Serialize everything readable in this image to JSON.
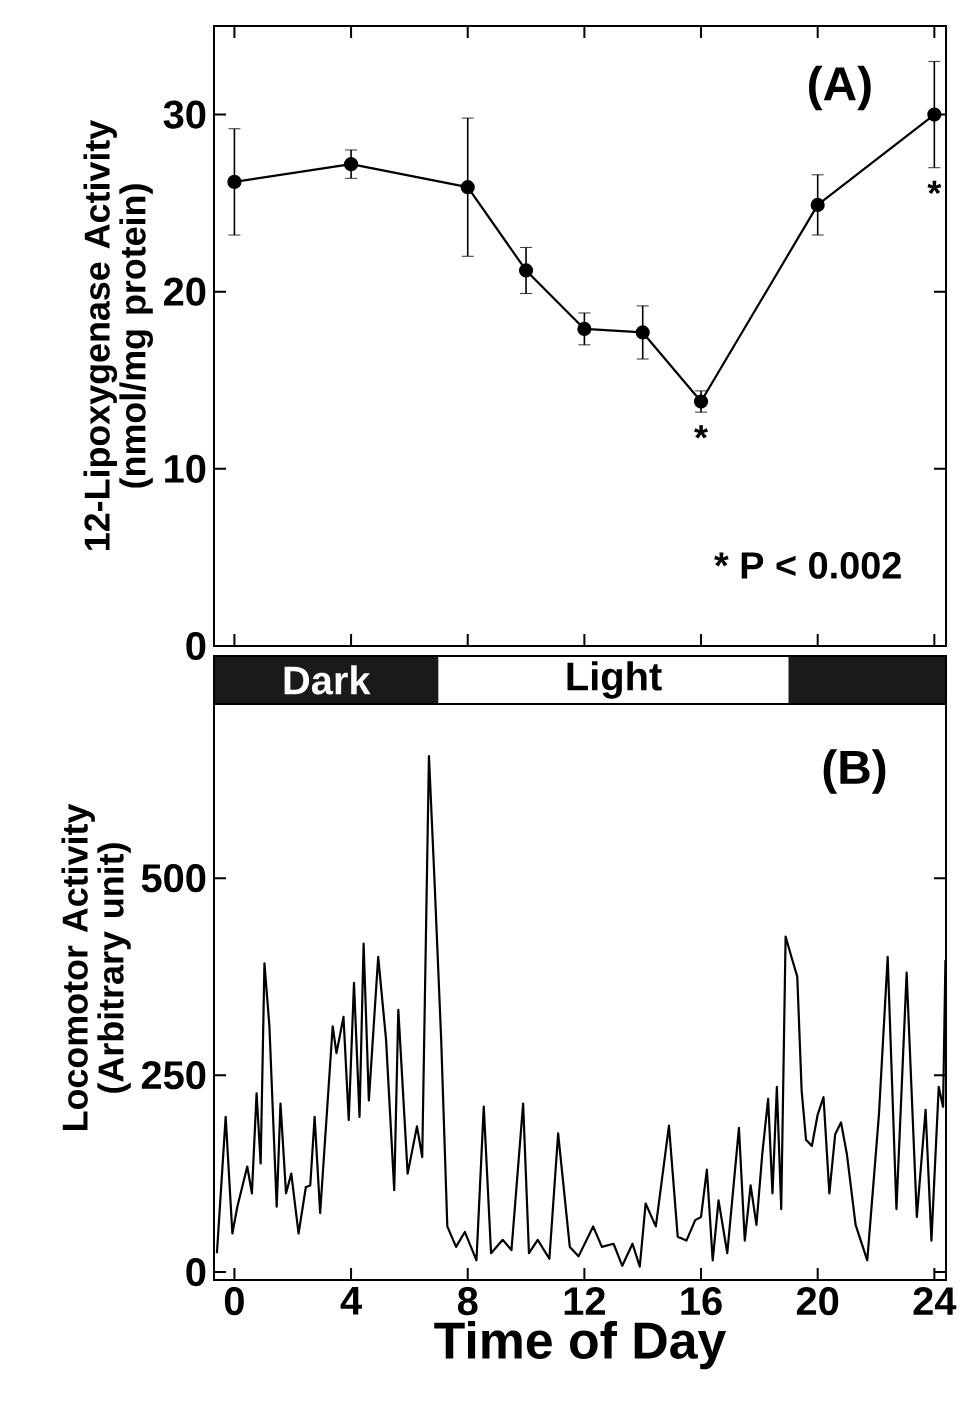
{
  "chart_data": [
    {
      "type": "line",
      "title": "(A)",
      "ylabel": "12-Lipoxygenase Activity (nmol/mg protein)",
      "xlim": [
        -0.7,
        24.4
      ],
      "xticks": [
        0,
        4,
        8,
        12,
        16,
        20,
        24
      ],
      "ylim": [
        0,
        35
      ],
      "yticks": [
        0,
        10,
        20,
        30
      ],
      "tick_labels": "y",
      "marker": "circle",
      "series": [
        {
          "color": "#000000",
          "x": [
            0,
            4,
            8,
            10,
            12,
            14,
            16,
            20,
            24
          ],
          "values": [
            26.2,
            27.2,
            25.9,
            21.2,
            17.9,
            17.7,
            13.8,
            24.9,
            30.0
          ],
          "errors": [
            3,
            0.8,
            3.9,
            1.3,
            0.9,
            1.5,
            0.6,
            1.7,
            3
          ]
        }
      ],
      "annotations": [
        {
          "text": "*",
          "x": 16,
          "y": 13.8
        },
        {
          "text": "*",
          "x": 24,
          "y": 30.0
        },
        "* P < 0.002"
      ]
    },
    {
      "type": "line",
      "title": "(B)",
      "xlabel": "Time of Day",
      "ylabel": "Locomotor Activity (Arbitrary unit)",
      "xlim": [
        -0.7,
        24.4
      ],
      "xticks": [
        0,
        4,
        8,
        12,
        16,
        20,
        24
      ],
      "ylim": [
        -10,
        782
      ],
      "yticks": [
        0,
        250,
        500
      ],
      "bands": [
        {
          "axis": "x",
          "from": -0.7,
          "to": 7,
          "label": "Dark",
          "color": "#1a1a1a"
        },
        {
          "axis": "x",
          "from": 7,
          "to": 19,
          "label": "Light",
          "color": "#ffffff"
        },
        {
          "axis": "x",
          "from": 19,
          "to": 24.4,
          "color": "#1a1a1a"
        }
      ],
      "series": [
        {
          "color": "#000000",
          "x": [
            -0.6,
            -0.3,
            -0.07,
            0.1,
            0.44,
            0.6,
            0.76,
            0.9,
            1.03,
            1.2,
            1.45,
            1.58,
            1.77,
            1.95,
            2.2,
            2.45,
            2.6,
            2.75,
            2.94,
            3.37,
            3.5,
            3.74,
            3.92,
            4.1,
            4.29,
            4.43,
            4.61,
            4.93,
            5.2,
            5.48,
            5.62,
            5.94,
            6.26,
            6.44,
            6.67,
            6.86,
            7.09,
            7.3,
            7.6,
            7.9,
            8.3,
            8.55,
            8.8,
            9.2,
            9.5,
            9.9,
            10.1,
            10.4,
            10.8,
            11.1,
            11.5,
            11.8,
            12.3,
            12.6,
            13.0,
            13.3,
            13.65,
            13.9,
            14.1,
            14.45,
            14.9,
            15.2,
            15.5,
            15.8,
            16.0,
            16.2,
            16.4,
            16.6,
            16.9,
            17.3,
            17.5,
            17.7,
            17.9,
            18.1,
            18.3,
            18.45,
            18.6,
            18.75,
            18.9,
            19.1,
            19.3,
            19.45,
            19.6,
            19.8,
            20.0,
            20.2,
            20.4,
            20.6,
            20.8,
            21.0,
            21.3,
            21.7,
            22.1,
            22.4,
            22.7,
            23.05,
            23.4,
            23.7,
            23.9,
            24.15,
            24.3,
            24.38
          ],
          "values": [
            24,
            197,
            49,
            83,
            134,
            100,
            227,
            138,
            392,
            312,
            83,
            214,
            100,
            125,
            49,
            108,
            110,
            197,
            75,
            312,
            278,
            324,
            193,
            367,
            197,
            417,
            218,
            400,
            295,
            104,
            333,
            125,
            185,
            146,
            655,
            498,
            295,
            58,
            32,
            51,
            15,
            210,
            24,
            41,
            28,
            214,
            24,
            41,
            17,
            176,
            32,
            20,
            58,
            32,
            36,
            8,
            36,
            7,
            87,
            58,
            186,
            45,
            40,
            66,
            70,
            130,
            15,
            91,
            24,
            183,
            40,
            110,
            60,
            150,
            220,
            100,
            235,
            80,
            426,
            400,
            375,
            230,
            168,
            160,
            200,
            222,
            100,
            175,
            190,
            150,
            60,
            15,
            200,
            400,
            80,
            380,
            70,
            206,
            40,
            235,
            210,
            396
          ]
        }
      ]
    }
  ]
}
